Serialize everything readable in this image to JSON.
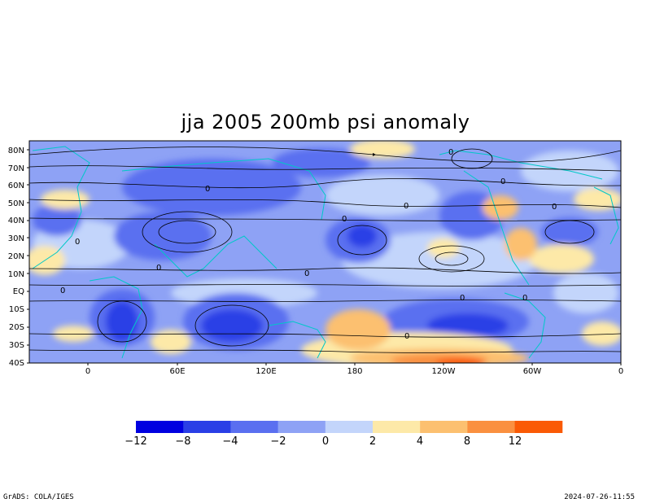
{
  "title": "jja 2005 200mb psi anomaly",
  "map": {
    "lat_labels": [
      "80N",
      "70N",
      "60N",
      "50N",
      "40N",
      "30N",
      "20N",
      "10N",
      "EQ",
      "10S",
      "20S",
      "30S",
      "40S"
    ],
    "lon_labels": [
      "0",
      "60E",
      "120E",
      "180",
      "120W",
      "60W",
      "0"
    ],
    "contour_zero_label": "0"
  },
  "colorbar": {
    "labels": [
      "−12",
      "−8",
      "−4",
      "−2",
      "0",
      "2",
      "4",
      "8",
      "12"
    ],
    "colors": [
      "#0000e0",
      "#2a3fe6",
      "#5a6ff0",
      "#8ea2f5",
      "#c3d5fb",
      "#fde9a8",
      "#fcc070",
      "#fa9040",
      "#fa5a05"
    ]
  },
  "footer": {
    "left": "GrADS: COLA/IGES",
    "right": "2024-07-26-11:55"
  }
}
